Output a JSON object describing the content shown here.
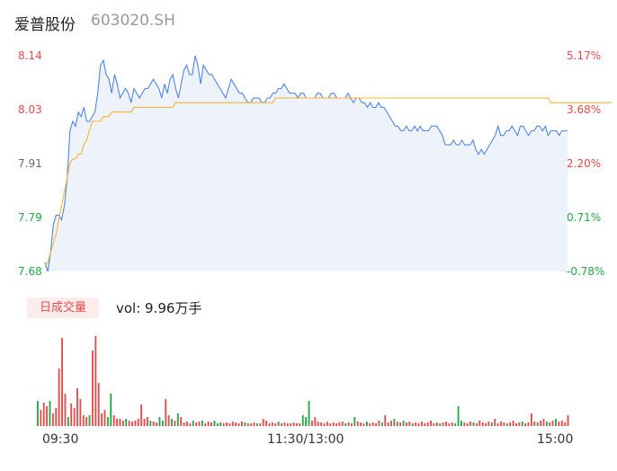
{
  "header": {
    "name": "爱普股份",
    "code": "603020.SH"
  },
  "price_axis": [
    "8.14",
    "8.03",
    "7.91",
    "7.79",
    "7.68"
  ],
  "pct_axis": [
    "5.17%",
    "3.68%",
    "2.20%",
    "0.71%",
    "-0.78%"
  ],
  "volume": {
    "tag": "日成交量",
    "label": "vol: 9.96万手"
  },
  "time_axis": [
    "09:30",
    "11:30/13:00",
    "15:00"
  ],
  "colors": {
    "price_line": "#4f86e8",
    "avg_line": "#f5b335",
    "up": "#e84b4b",
    "down": "#22a845",
    "area": "#eef2fb"
  },
  "chart_data": {
    "type": "line",
    "ylim": [
      7.68,
      8.14
    ],
    "pct_range": [
      -0.78,
      5.17
    ],
    "series": [
      {
        "values": [
          7.7,
          7.68,
          7.72,
          7.78,
          7.8,
          7.8,
          7.79,
          7.82,
          7.88,
          7.98,
          8.0,
          7.99,
          8.02,
          8.01,
          8.03,
          8.0,
          8.0,
          8.01,
          8.02,
          8.06,
          8.12,
          8.13,
          8.1,
          8.09,
          8.06,
          8.1,
          8.08,
          8.05,
          8.06,
          8.07,
          8.06,
          8.04,
          8.07,
          8.06,
          8.05,
          8.06,
          8.07,
          8.07,
          8.08,
          8.09,
          8.08,
          8.07,
          8.05,
          8.08,
          8.06,
          8.09,
          8.1,
          8.07,
          8.05,
          8.08,
          8.11,
          8.12,
          8.1,
          8.1,
          8.14,
          8.12,
          8.08,
          8.12,
          8.11,
          8.1,
          8.1,
          8.09,
          8.08,
          8.07,
          8.06,
          8.05,
          8.07,
          8.09,
          8.08,
          8.07,
          8.06,
          8.06,
          8.05,
          8.04,
          8.04,
          8.05,
          8.05,
          8.05,
          8.04,
          8.04,
          8.05,
          8.05,
          8.06,
          8.06,
          8.07,
          8.07,
          8.08,
          8.07,
          8.06,
          8.06,
          8.06,
          8.05,
          8.06,
          8.06,
          8.05,
          8.05,
          8.05,
          8.05,
          8.06,
          8.06,
          8.05,
          8.05,
          8.05,
          8.06,
          8.06,
          8.05,
          8.05,
          8.05,
          8.05,
          8.06,
          8.05,
          8.04,
          8.05,
          8.05,
          8.04,
          8.04,
          8.03,
          8.04,
          8.03,
          8.03,
          8.04,
          8.03,
          8.03,
          8.02,
          8.01,
          8.0,
          7.99,
          7.99,
          7.98,
          7.98,
          7.99,
          7.98,
          7.98,
          7.99,
          7.98,
          7.99,
          7.98,
          7.98,
          7.98,
          7.99,
          7.99,
          7.99,
          7.98,
          7.97,
          7.95,
          7.95,
          7.95,
          7.96,
          7.95,
          7.95,
          7.96,
          7.95,
          7.95,
          7.95,
          7.96,
          7.94,
          7.93,
          7.94,
          7.93,
          7.94,
          7.95,
          7.96,
          7.97,
          7.99,
          7.97,
          7.97,
          7.98,
          7.98,
          7.99,
          7.98,
          7.97,
          7.99,
          7.99,
          7.98,
          7.97,
          7.98,
          7.98,
          7.99,
          7.99,
          7.98,
          7.99,
          7.97,
          7.98,
          7.98,
          7.98,
          7.97,
          7.98,
          7.98,
          7.98
        ]
      },
      {
        "values": [
          7.69,
          7.7,
          7.72,
          7.74,
          7.76,
          7.79,
          7.82,
          7.85,
          7.88,
          7.91,
          7.92,
          7.92,
          7.93,
          7.93,
          7.95,
          7.96,
          7.98,
          8.0,
          8.0,
          8.0,
          8.0,
          8.01,
          8.01,
          8.01,
          8.02,
          8.02,
          8.02,
          8.02,
          8.02,
          8.02,
          8.02,
          8.02,
          8.03,
          8.03,
          8.03,
          8.03,
          8.03,
          8.03,
          8.03,
          8.03,
          8.03,
          8.03,
          8.03,
          8.03,
          8.03,
          8.03,
          8.03,
          8.04,
          8.04,
          8.04,
          8.04,
          8.04,
          8.04,
          8.04,
          8.04,
          8.04,
          8.04,
          8.04,
          8.04,
          8.04,
          8.04,
          8.04,
          8.04,
          8.04,
          8.04,
          8.04,
          8.04,
          8.04,
          8.04,
          8.04,
          8.04,
          8.04,
          8.04,
          8.04,
          8.04,
          8.04,
          8.04,
          8.04,
          8.04,
          8.04,
          8.04,
          8.04,
          8.04,
          8.05,
          8.05,
          8.05,
          8.05,
          8.05,
          8.05,
          8.05,
          8.05,
          8.05,
          8.05,
          8.05,
          8.05,
          8.05,
          8.05,
          8.05,
          8.05,
          8.05,
          8.05,
          8.05,
          8.05,
          8.05,
          8.05,
          8.05,
          8.05,
          8.05,
          8.05,
          8.05,
          8.05,
          8.05,
          8.05,
          8.05,
          8.05,
          8.05,
          8.05,
          8.05,
          8.05,
          8.05,
          8.05,
          8.05,
          8.05,
          8.05,
          8.05,
          8.05,
          8.05,
          8.05,
          8.05,
          8.05,
          8.05,
          8.05,
          8.05,
          8.05,
          8.05,
          8.05,
          8.05,
          8.05,
          8.05,
          8.05,
          8.05,
          8.05,
          8.05,
          8.05,
          8.05,
          8.05,
          8.05,
          8.05,
          8.05,
          8.05,
          8.05,
          8.05,
          8.05,
          8.05,
          8.05,
          8.05,
          8.05,
          8.05,
          8.05,
          8.05,
          8.05,
          8.05,
          8.05,
          8.05,
          8.05,
          8.05,
          8.05,
          8.05,
          8.05,
          8.05,
          8.05,
          8.05,
          8.05,
          8.05,
          8.05,
          8.05,
          8.05,
          8.05,
          8.05,
          8.05,
          8.05,
          8.05,
          8.04,
          8.04,
          8.04,
          8.04,
          8.04,
          8.04,
          8.04,
          8.04,
          8.04,
          8.04,
          8.04,
          8.04,
          8.04,
          8.04,
          8.04,
          8.04,
          8.04,
          8.04,
          8.04,
          8.04,
          8.04,
          8.04,
          8.04
        ]
      }
    ],
    "volume_bars": [
      {
        "v": 28,
        "c": "down"
      },
      {
        "v": 18,
        "c": "up"
      },
      {
        "v": 26,
        "c": "up"
      },
      {
        "v": 22,
        "c": "up"
      },
      {
        "v": 28,
        "c": "down"
      },
      {
        "v": 14,
        "c": "up"
      },
      {
        "v": 20,
        "c": "up"
      },
      {
        "v": 64,
        "c": "up"
      },
      {
        "v": 98,
        "c": "up"
      },
      {
        "v": 36,
        "c": "up"
      },
      {
        "v": 10,
        "c": "down"
      },
      {
        "v": 25,
        "c": "up"
      },
      {
        "v": 20,
        "c": "up"
      },
      {
        "v": 42,
        "c": "up"
      },
      {
        "v": 30,
        "c": "up"
      },
      {
        "v": 12,
        "c": "up"
      },
      {
        "v": 10,
        "c": "up"
      },
      {
        "v": 12,
        "c": "down"
      },
      {
        "v": 84,
        "c": "up"
      },
      {
        "v": 100,
        "c": "up"
      },
      {
        "v": 48,
        "c": "up"
      },
      {
        "v": 14,
        "c": "up"
      },
      {
        "v": 18,
        "c": "up"
      },
      {
        "v": 10,
        "c": "down"
      },
      {
        "v": 36,
        "c": "down"
      },
      {
        "v": 12,
        "c": "up"
      },
      {
        "v": 8,
        "c": "up"
      },
      {
        "v": 8,
        "c": "up"
      },
      {
        "v": 6,
        "c": "up"
      },
      {
        "v": 8,
        "c": "down"
      },
      {
        "v": 6,
        "c": "up"
      },
      {
        "v": 5,
        "c": "up"
      },
      {
        "v": 6,
        "c": "up"
      },
      {
        "v": 8,
        "c": "up"
      },
      {
        "v": 24,
        "c": "up"
      },
      {
        "v": 8,
        "c": "up"
      },
      {
        "v": 10,
        "c": "up"
      },
      {
        "v": 6,
        "c": "down"
      },
      {
        "v": 5,
        "c": "up"
      },
      {
        "v": 4,
        "c": "up"
      },
      {
        "v": 10,
        "c": "down"
      },
      {
        "v": 6,
        "c": "down"
      },
      {
        "v": 30,
        "c": "up"
      },
      {
        "v": 12,
        "c": "up"
      },
      {
        "v": 8,
        "c": "down"
      },
      {
        "v": 6,
        "c": "up"
      },
      {
        "v": 14,
        "c": "down"
      },
      {
        "v": 10,
        "c": "up"
      },
      {
        "v": 4,
        "c": "up"
      },
      {
        "v": 5,
        "c": "up"
      },
      {
        "v": 3,
        "c": "up"
      },
      {
        "v": 6,
        "c": "down"
      },
      {
        "v": 4,
        "c": "up"
      },
      {
        "v": 5,
        "c": "up"
      },
      {
        "v": 6,
        "c": "down"
      },
      {
        "v": 3,
        "c": "up"
      },
      {
        "v": 5,
        "c": "up"
      },
      {
        "v": 4,
        "c": "up"
      },
      {
        "v": 6,
        "c": "down"
      },
      {
        "v": 3,
        "c": "down"
      },
      {
        "v": 4,
        "c": "down"
      },
      {
        "v": 3,
        "c": "up"
      },
      {
        "v": 4,
        "c": "up"
      },
      {
        "v": 3,
        "c": "up"
      },
      {
        "v": 5,
        "c": "up"
      },
      {
        "v": 4,
        "c": "up"
      },
      {
        "v": 3,
        "c": "up"
      },
      {
        "v": 5,
        "c": "up"
      },
      {
        "v": 4,
        "c": "down"
      },
      {
        "v": 3,
        "c": "up"
      },
      {
        "v": 3,
        "c": "up"
      },
      {
        "v": 4,
        "c": "up"
      },
      {
        "v": 3,
        "c": "down"
      },
      {
        "v": 3,
        "c": "up"
      },
      {
        "v": 8,
        "c": "up"
      },
      {
        "v": 6,
        "c": "up"
      },
      {
        "v": 3,
        "c": "up"
      },
      {
        "v": 4,
        "c": "up"
      },
      {
        "v": 3,
        "c": "up"
      },
      {
        "v": 5,
        "c": "down"
      },
      {
        "v": 3,
        "c": "up"
      },
      {
        "v": 4,
        "c": "up"
      },
      {
        "v": 3,
        "c": "up"
      },
      {
        "v": 3,
        "c": "up"
      },
      {
        "v": 4,
        "c": "up"
      },
      {
        "v": 3,
        "c": "up"
      },
      {
        "v": 3,
        "c": "up"
      },
      {
        "v": 12,
        "c": "down"
      },
      {
        "v": 10,
        "c": "down"
      },
      {
        "v": 28,
        "c": "down"
      },
      {
        "v": 6,
        "c": "up"
      },
      {
        "v": 10,
        "c": "up"
      },
      {
        "v": 5,
        "c": "up"
      },
      {
        "v": 4,
        "c": "up"
      },
      {
        "v": 3,
        "c": "up"
      },
      {
        "v": 5,
        "c": "up"
      },
      {
        "v": 3,
        "c": "up"
      },
      {
        "v": 4,
        "c": "up"
      },
      {
        "v": 3,
        "c": "up"
      },
      {
        "v": 4,
        "c": "up"
      },
      {
        "v": 5,
        "c": "up"
      },
      {
        "v": 3,
        "c": "down"
      },
      {
        "v": 4,
        "c": "up"
      },
      {
        "v": 3,
        "c": "up"
      },
      {
        "v": 10,
        "c": "down"
      },
      {
        "v": 5,
        "c": "up"
      },
      {
        "v": 4,
        "c": "up"
      },
      {
        "v": 3,
        "c": "up"
      },
      {
        "v": 5,
        "c": "down"
      },
      {
        "v": 3,
        "c": "up"
      },
      {
        "v": 4,
        "c": "up"
      },
      {
        "v": 3,
        "c": "up"
      },
      {
        "v": 6,
        "c": "up"
      },
      {
        "v": 4,
        "c": "down"
      },
      {
        "v": 12,
        "c": "up"
      },
      {
        "v": 4,
        "c": "up"
      },
      {
        "v": 6,
        "c": "up"
      },
      {
        "v": 8,
        "c": "down"
      },
      {
        "v": 5,
        "c": "up"
      },
      {
        "v": 4,
        "c": "up"
      },
      {
        "v": 6,
        "c": "down"
      },
      {
        "v": 4,
        "c": "up"
      },
      {
        "v": 5,
        "c": "up"
      },
      {
        "v": 3,
        "c": "down"
      },
      {
        "v": 4,
        "c": "up"
      },
      {
        "v": 3,
        "c": "up"
      },
      {
        "v": 5,
        "c": "up"
      },
      {
        "v": 3,
        "c": "up"
      },
      {
        "v": 4,
        "c": "up"
      },
      {
        "v": 6,
        "c": "up"
      },
      {
        "v": 3,
        "c": "up"
      },
      {
        "v": 4,
        "c": "up"
      },
      {
        "v": 3,
        "c": "down"
      },
      {
        "v": 4,
        "c": "up"
      },
      {
        "v": 5,
        "c": "up"
      },
      {
        "v": 3,
        "c": "up"
      },
      {
        "v": 4,
        "c": "up"
      },
      {
        "v": 3,
        "c": "down"
      },
      {
        "v": 22,
        "c": "down"
      },
      {
        "v": 6,
        "c": "down"
      },
      {
        "v": 4,
        "c": "up"
      },
      {
        "v": 3,
        "c": "up"
      },
      {
        "v": 5,
        "c": "up"
      },
      {
        "v": 4,
        "c": "down"
      },
      {
        "v": 3,
        "c": "up"
      },
      {
        "v": 6,
        "c": "up"
      },
      {
        "v": 4,
        "c": "up"
      },
      {
        "v": 3,
        "c": "up"
      },
      {
        "v": 5,
        "c": "up"
      },
      {
        "v": 4,
        "c": "down"
      },
      {
        "v": 8,
        "c": "up"
      },
      {
        "v": 3,
        "c": "up"
      },
      {
        "v": 5,
        "c": "up"
      },
      {
        "v": 4,
        "c": "up"
      },
      {
        "v": 3,
        "c": "down"
      },
      {
        "v": 4,
        "c": "up"
      },
      {
        "v": 6,
        "c": "up"
      },
      {
        "v": 3,
        "c": "up"
      },
      {
        "v": 4,
        "c": "up"
      },
      {
        "v": 5,
        "c": "down"
      },
      {
        "v": 3,
        "c": "up"
      },
      {
        "v": 4,
        "c": "up"
      },
      {
        "v": 14,
        "c": "up"
      },
      {
        "v": 5,
        "c": "up"
      },
      {
        "v": 4,
        "c": "down"
      },
      {
        "v": 6,
        "c": "up"
      },
      {
        "v": 8,
        "c": "up"
      },
      {
        "v": 5,
        "c": "down"
      },
      {
        "v": 4,
        "c": "up"
      },
      {
        "v": 6,
        "c": "up"
      },
      {
        "v": 8,
        "c": "down"
      },
      {
        "v": 5,
        "c": "up"
      },
      {
        "v": 6,
        "c": "up"
      },
      {
        "v": 4,
        "c": "up"
      },
      {
        "v": 12,
        "c": "up"
      }
    ]
  }
}
